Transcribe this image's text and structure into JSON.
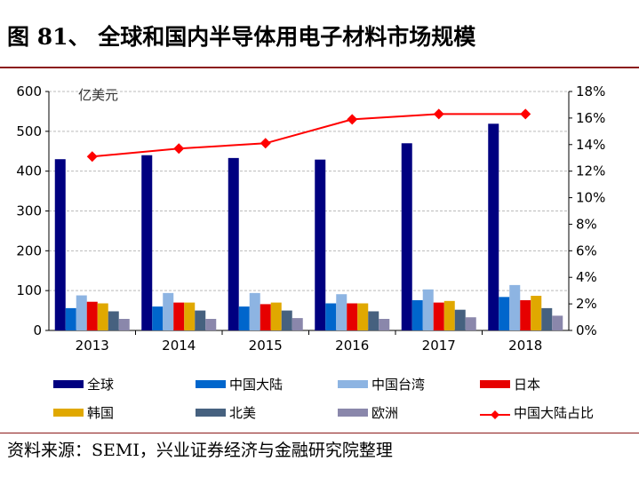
{
  "title": "图 81、  全球和国内半导体用电子材料市场规模",
  "source": "资料来源：SEMI，兴业证券经济与金融研究院整理",
  "chart_data": {
    "type": "bar",
    "unit_label": "亿美元",
    "categories": [
      "2013",
      "2014",
      "2015",
      "2016",
      "2017",
      "2018"
    ],
    "ylim": [
      0,
      600
    ],
    "yticks": [
      "0",
      "100",
      "200",
      "300",
      "400",
      "500",
      "600"
    ],
    "y2lim": [
      0,
      18
    ],
    "y2ticks": [
      "0%",
      "2%",
      "4%",
      "6%",
      "8%",
      "10%",
      "12%",
      "14%",
      "16%",
      "18%"
    ],
    "series": [
      {
        "name": "全球",
        "color": "#000080",
        "values": [
          430,
          440,
          433,
          429,
          470,
          519
        ]
      },
      {
        "name": "中国大陆",
        "color": "#0066cc",
        "values": [
          56,
          60,
          60,
          68,
          76,
          84
        ]
      },
      {
        "name": "中国台湾",
        "color": "#8db4e2",
        "values": [
          88,
          94,
          94,
          91,
          103,
          114
        ]
      },
      {
        "name": "日本",
        "color": "#e60000",
        "values": [
          72,
          70,
          66,
          68,
          70,
          76
        ]
      },
      {
        "name": "韩国",
        "color": "#e0a800",
        "values": [
          68,
          70,
          70,
          68,
          74,
          87
        ]
      },
      {
        "name": "北美",
        "color": "#46617f",
        "values": [
          48,
          50,
          50,
          48,
          52,
          56
        ]
      },
      {
        "name": "欧洲",
        "color": "#8a87ab",
        "values": [
          29,
          29,
          31,
          29,
          33,
          37
        ]
      }
    ],
    "line": {
      "name": "中国大陆占比",
      "color": "#ff0000",
      "values": [
        13.1,
        13.7,
        14.1,
        15.9,
        16.3,
        16.3
      ],
      "axis": "right"
    },
    "grid": true,
    "legend": "bottom"
  }
}
